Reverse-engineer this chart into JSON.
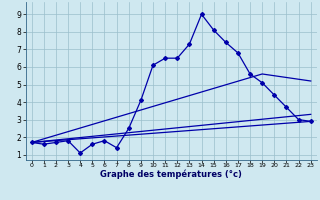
{
  "xlabel": "Graphe des températures (°c)",
  "bg_color": "#cfe8f0",
  "grid_color": "#9bbfcc",
  "line_color": "#0000aa",
  "xlim": [
    -0.5,
    23.5
  ],
  "ylim": [
    0.7,
    9.7
  ],
  "xticks": [
    0,
    1,
    2,
    3,
    4,
    5,
    6,
    7,
    8,
    9,
    10,
    11,
    12,
    13,
    14,
    15,
    16,
    17,
    18,
    19,
    20,
    21,
    22,
    23
  ],
  "yticks": [
    1,
    2,
    3,
    4,
    5,
    6,
    7,
    8,
    9
  ],
  "hourly_x": [
    0,
    1,
    2,
    3,
    4,
    5,
    6,
    7,
    8,
    9,
    10,
    11,
    12,
    13,
    14,
    15,
    16,
    17,
    18,
    19,
    20,
    21,
    22,
    23
  ],
  "hourly_y": [
    1.7,
    1.6,
    1.7,
    1.8,
    1.1,
    1.6,
    1.8,
    1.4,
    2.5,
    4.1,
    6.1,
    6.5,
    6.5,
    7.3,
    9.0,
    8.1,
    7.4,
    6.8,
    5.6,
    5.1,
    4.4,
    3.7,
    3.0,
    2.9
  ],
  "line1_x": [
    0,
    23
  ],
  "line1_y": [
    1.7,
    2.9
  ],
  "line2_x": [
    0,
    23
  ],
  "line2_y": [
    1.7,
    3.3
  ],
  "line3_x": [
    0,
    19,
    23
  ],
  "line3_y": [
    1.7,
    5.6,
    5.2
  ]
}
